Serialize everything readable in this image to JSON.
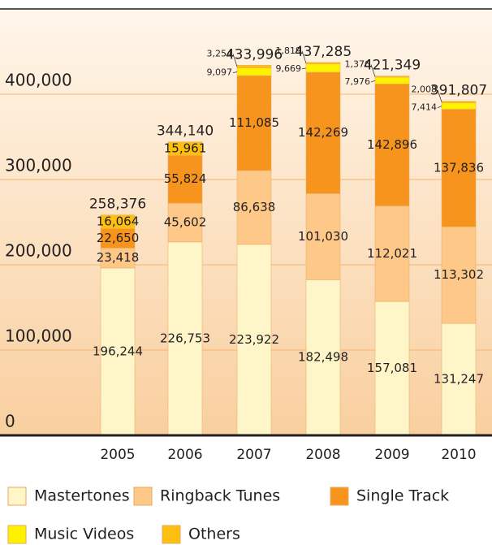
{
  "chart_data": {
    "type": "stacked-bar",
    "categories": [
      "2005",
      "2006",
      "2007",
      "2008",
      "2009",
      "2010"
    ],
    "series": [
      {
        "name": "Mastertones",
        "color": "#fef6c8",
        "values": [
          196244,
          226753,
          223922,
          182498,
          157081,
          131247
        ],
        "value_labels": [
          "196,244",
          "226,753",
          "223,922",
          "182,498",
          "157,081",
          "131,247"
        ]
      },
      {
        "name": "Ringback Tunes",
        "color": "#fdc888",
        "values": [
          23418,
          45602,
          86638,
          101030,
          112021,
          113302
        ],
        "value_labels": [
          "23,418",
          "45,602",
          "86,638",
          "101,030",
          "112,021",
          "113,302"
        ]
      },
      {
        "name": "Single Track",
        "color": "#f7941d",
        "values": [
          22650,
          55824,
          111085,
          142269,
          142896,
          137836
        ],
        "value_labels": [
          "22,650",
          "55,824",
          "111,085",
          "142,269",
          "142,896",
          "137,836"
        ]
      },
      {
        "name": "Music Videos",
        "color": "#fff200",
        "values": [
          null,
          null,
          9097,
          9669,
          7976,
          7414
        ],
        "value_labels": [
          null,
          null,
          "9,097",
          "9,669",
          "7,976",
          "7,414"
        ]
      },
      {
        "name": "Others",
        "color": "#fdc010",
        "values": [
          16064,
          15961,
          3254,
          1819,
          1376,
          2008
        ],
        "value_labels": [
          "16,064",
          "15,961",
          "3,254",
          "1,819",
          "1,376",
          "2,008"
        ]
      }
    ],
    "totals": [
      "258,376",
      "344,140",
      "433,996",
      "437,285",
      "421,349",
      "391,807"
    ],
    "ylim": [
      0,
      500000
    ],
    "yticks": [
      {
        "value": 0,
        "label": "0"
      },
      {
        "value": 100000,
        "label": "100,000"
      },
      {
        "value": 200000,
        "label": "200,000"
      },
      {
        "value": 300000,
        "label": "300,000"
      },
      {
        "value": 400000,
        "label": "400,000"
      }
    ],
    "grid": true
  }
}
